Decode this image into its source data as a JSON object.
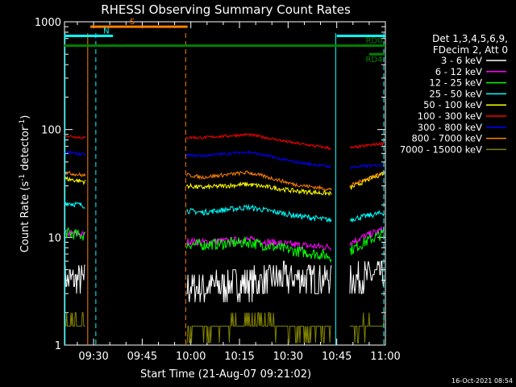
{
  "chart_data": {
    "type": "line",
    "title": "RHESSI Observing Summary Count Rates",
    "xlabel": "Start Time (21-Aug-07 09:21:02)",
    "ylabel": "Count Rate (s⁻¹ detector⁻¹)",
    "ylabel_main": "Count Rate (s",
    "ylabel_sup1": "-1",
    "ylabel_mid": " detector",
    "ylabel_sup2": "-1",
    "ylabel_end": ")",
    "y_scale": "log",
    "ylim": [
      1,
      1000
    ],
    "xlim": [
      "09:21:02",
      "11:00"
    ],
    "x_tick_labels": [
      "09:30",
      "09:45",
      "10:00",
      "10:15",
      "10:30",
      "10:45",
      "11:00"
    ],
    "x_ticks_min": [
      30,
      45,
      60,
      75,
      90,
      105,
      120
    ],
    "y_tick_labels": [
      "1",
      "10",
      "100",
      "1000"
    ],
    "y_ticks": [
      1,
      10,
      100,
      1000
    ],
    "legend_header": [
      "Det 1,3,4,5,6,9,",
      "FDecim 2, Att 0"
    ],
    "legend_position": "right",
    "timestamp": "16-Oct-2021 08:54",
    "gaps_min": [
      [
        27.5,
        58.5
      ],
      [
        103.5,
        109
      ]
    ],
    "flags": [
      {
        "label": "S",
        "color": "#ff8000",
        "start_min": 29,
        "end_min": 59,
        "level": 900
      },
      {
        "label": "N",
        "color": "#00ffff",
        "start_min": 21,
        "end_min": 36,
        "level": 740
      },
      {
        "label": "RD0",
        "color": "#008000",
        "start_min": 21,
        "end_min": 120,
        "level": 600
      },
      {
        "label": "RD4",
        "color": "#008000",
        "start_min": 115,
        "end_min": 120,
        "level": 500
      },
      {
        "label": "",
        "color": "#00ffff",
        "start_min": 105,
        "end_min": 120,
        "level": 740
      }
    ],
    "vlines": [
      {
        "t_min": 21.2,
        "color": "#00ffff",
        "dash": false
      },
      {
        "t_min": 28.2,
        "color": "#ff8000",
        "dash": false
      },
      {
        "t_min": 30.7,
        "color": "#00ffff",
        "dash": true
      },
      {
        "t_min": 58.4,
        "color": "#ff8000",
        "dash": true
      },
      {
        "t_min": 104.7,
        "color": "#00ffff",
        "dash": false
      },
      {
        "t_min": 119.5,
        "color": "#00ffff",
        "dash": true
      }
    ],
    "series": [
      {
        "name": "3 - 6 keV",
        "color": "#ffffff",
        "levels": [
          4.0,
          4.0,
          3.6,
          3.4,
          3.8,
          4.2,
          4.0,
          4.5
        ],
        "noise": 0.35
      },
      {
        "name": "6 - 12 keV",
        "color": "#ff00ff",
        "levels": [
          11,
          10,
          9.5,
          9,
          9.5,
          8.5,
          8,
          12
        ],
        "noise": 0.08
      },
      {
        "name": "12 - 25 keV",
        "color": "#00ff00",
        "levels": [
          11,
          9.5,
          9,
          8.5,
          9,
          7.5,
          6.5,
          11
        ],
        "noise": 0.12
      },
      {
        "name": "25 - 50 keV",
        "color": "#00ffff",
        "levels": [
          21,
          18,
          19,
          17,
          19,
          16,
          14,
          17
        ],
        "noise": 0.06
      },
      {
        "name": "50 - 100 keV",
        "color": "#ffff00",
        "levels": [
          35,
          30,
          32,
          29,
          31,
          27,
          25,
          40
        ],
        "noise": 0.05
      },
      {
        "name": "100 - 300 keV",
        "color": "#ff0000",
        "levels": [
          88,
          78,
          86,
          84,
          90,
          75,
          65,
          75
        ],
        "noise": 0.03
      },
      {
        "name": "300 - 800 keV",
        "color": "#0000ff",
        "levels": [
          62,
          54,
          60,
          57,
          62,
          50,
          44,
          47
        ],
        "noise": 0.03
      },
      {
        "name": "800 - 7000 keV",
        "color": "#ff8000",
        "levels": [
          40,
          34,
          42,
          36,
          40,
          31,
          27,
          40
        ],
        "noise": 0.04
      },
      {
        "name": "7000 - 15000 keV",
        "color": "#808000",
        "levels": [
          1.6,
          1.5,
          1.3,
          1.3,
          1.6,
          1.4,
          1.3,
          1.6
        ],
        "noise": 0.2
      }
    ]
  }
}
